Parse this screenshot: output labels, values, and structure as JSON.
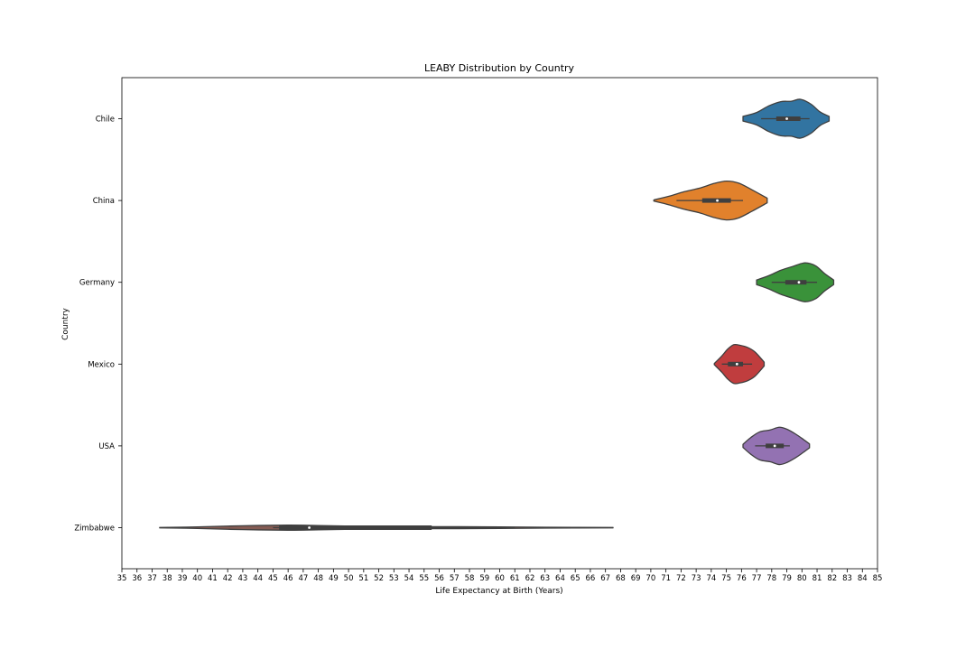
{
  "chart_data": {
    "type": "violin",
    "title": "LEABY Distribution by Country",
    "xlabel": "Life Expectancy at Birth (Years)",
    "ylabel": "Country",
    "xlim": [
      35,
      85
    ],
    "xticks": [
      "35",
      "36",
      "37",
      "38",
      "39",
      "40",
      "41",
      "42",
      "43",
      "44",
      "45",
      "46",
      "47",
      "48",
      "49",
      "50",
      "51",
      "52",
      "53",
      "54",
      "55",
      "56",
      "57",
      "58",
      "59",
      "60",
      "61",
      "62",
      "63",
      "64",
      "65",
      "66",
      "67",
      "68",
      "69",
      "70",
      "71",
      "72",
      "73",
      "74",
      "75",
      "76",
      "77",
      "78",
      "79",
      "80",
      "81",
      "82",
      "83",
      "84",
      "85"
    ],
    "categories": [
      "Chile",
      "China",
      "Germany",
      "Mexico",
      "USA",
      "Zimbabwe"
    ],
    "grid": false,
    "series": [
      {
        "country": "Chile",
        "color": "#3274a1",
        "min": 77.3,
        "q1": 78.3,
        "median": 79.0,
        "q3": 79.9,
        "max": 80.5,
        "violin_range": [
          76.1,
          81.8
        ],
        "density": [
          [
            76.1,
            0.12
          ],
          [
            77.0,
            0.32
          ],
          [
            77.8,
            0.66
          ],
          [
            78.6,
            0.88
          ],
          [
            79.3,
            0.9
          ],
          [
            79.9,
            1.0
          ],
          [
            80.6,
            0.75
          ],
          [
            81.2,
            0.35
          ],
          [
            81.8,
            0.12
          ]
        ]
      },
      {
        "country": "China",
        "color": "#e1812c",
        "min": 71.7,
        "q1": 73.4,
        "median": 74.4,
        "q3": 75.3,
        "max": 76.1,
        "violin_range": [
          70.2,
          77.7
        ],
        "density": [
          [
            70.2,
            0.03
          ],
          [
            71.2,
            0.22
          ],
          [
            72.2,
            0.45
          ],
          [
            73.2,
            0.63
          ],
          [
            74.2,
            0.88
          ],
          [
            75.0,
            1.0
          ],
          [
            75.8,
            0.9
          ],
          [
            76.7,
            0.55
          ],
          [
            77.7,
            0.12
          ]
        ]
      },
      {
        "country": "Germany",
        "color": "#3a923a",
        "min": 78.0,
        "q1": 78.9,
        "median": 79.8,
        "q3": 80.3,
        "max": 81.0,
        "violin_range": [
          77.0,
          82.1
        ],
        "density": [
          [
            77.0,
            0.12
          ],
          [
            77.8,
            0.34
          ],
          [
            78.6,
            0.62
          ],
          [
            79.4,
            0.82
          ],
          [
            80.2,
            1.0
          ],
          [
            80.9,
            0.85
          ],
          [
            81.5,
            0.45
          ],
          [
            82.1,
            0.12
          ]
        ]
      },
      {
        "country": "Mexico",
        "color": "#c03d3e",
        "min": 74.7,
        "q1": 75.1,
        "median": 75.7,
        "q3": 76.1,
        "max": 76.7,
        "violin_range": [
          74.2,
          77.5
        ],
        "density": [
          [
            74.2,
            0.03
          ],
          [
            74.7,
            0.42
          ],
          [
            75.1,
            0.78
          ],
          [
            75.5,
            1.0
          ],
          [
            75.9,
            0.97
          ],
          [
            76.4,
            0.86
          ],
          [
            76.9,
            0.62
          ],
          [
            77.5,
            0.1
          ]
        ]
      },
      {
        "country": "USA",
        "color": "#9372b2",
        "min": 76.9,
        "q1": 77.6,
        "median": 78.2,
        "q3": 78.8,
        "max": 79.2,
        "violin_range": [
          76.1,
          80.5
        ],
        "density": [
          [
            76.1,
            0.08
          ],
          [
            76.6,
            0.42
          ],
          [
            77.2,
            0.72
          ],
          [
            77.9,
            0.82
          ],
          [
            78.5,
            0.96
          ],
          [
            79.0,
            0.86
          ],
          [
            79.6,
            0.6
          ],
          [
            80.1,
            0.33
          ],
          [
            80.5,
            0.1
          ]
        ]
      },
      {
        "country": "Zimbabwe",
        "color": "#845b53",
        "min": 45.0,
        "q1": 45.4,
        "median": 47.4,
        "q3": 55.5,
        "max": 61.0,
        "violin_range": [
          37.5,
          67.5
        ],
        "density": [
          [
            37.5,
            0.01
          ],
          [
            40.0,
            0.04
          ],
          [
            43.0,
            0.1
          ],
          [
            46.0,
            0.13
          ],
          [
            48.0,
            0.11
          ],
          [
            51.0,
            0.07
          ],
          [
            54.0,
            0.05
          ],
          [
            57.0,
            0.05
          ],
          [
            60.0,
            0.04
          ],
          [
            63.0,
            0.02
          ],
          [
            67.5,
            0.01
          ]
        ]
      }
    ]
  }
}
